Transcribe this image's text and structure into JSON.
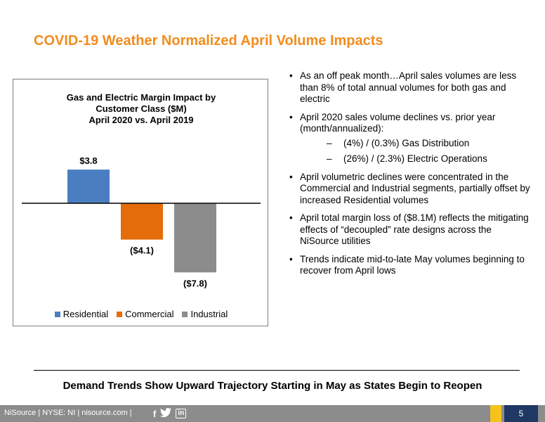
{
  "slide": {
    "title": "COVID-19 Weather Normalized April Volume Impacts",
    "tagline": "Demand Trends Show Upward Trajectory Starting in May as States Begin to Reopen",
    "page_number": "5"
  },
  "chart_data": {
    "type": "bar",
    "title_lines": [
      "Gas and Electric Margin Impact by",
      "Customer Class ($M)",
      "April 2020 vs. April 2019"
    ],
    "categories": [
      "Residential",
      "Commercial",
      "Industrial"
    ],
    "values": [
      3.8,
      -4.1,
      -7.8
    ],
    "data_labels": [
      "$3.8",
      "($4.1)",
      "($7.8)"
    ],
    "colors": [
      "#4A7EC0",
      "#E46C0A",
      "#8C8C8C"
    ],
    "legend": [
      "Residential",
      "Commercial",
      "Industrial"
    ],
    "legend_position": "bottom",
    "grid": false,
    "ylim": [
      -8,
      4
    ]
  },
  "bullets": [
    {
      "text": "As an off peak month…April sales volumes are less than 8% of total annual volumes for both gas and electric"
    },
    {
      "text": "April 2020 sales volume declines vs. prior year (month/annualized):",
      "sub": [
        "(4%) / (0.3%) Gas Distribution",
        "(26%) / (2.3%) Electric Operations"
      ]
    },
    {
      "text": "April volumetric declines were concentrated in the Commercial and Industrial segments, partially offset by increased Residential volumes"
    },
    {
      "text": "April total margin loss of ($8.1M) reflects the mitigating effects of “decoupled” rate designs across the NiSource utilities"
    },
    {
      "text": "Trends indicate mid-to-late May volumes beginning to recover from April lows"
    }
  ],
  "footer": {
    "text": "NiSource | NYSE: NI | nisource.com |",
    "icons": [
      "facebook-icon",
      "twitter-icon",
      "linkedin-icon"
    ],
    "accent_color": "#F4C21A",
    "page_box_color": "#1F3864"
  }
}
